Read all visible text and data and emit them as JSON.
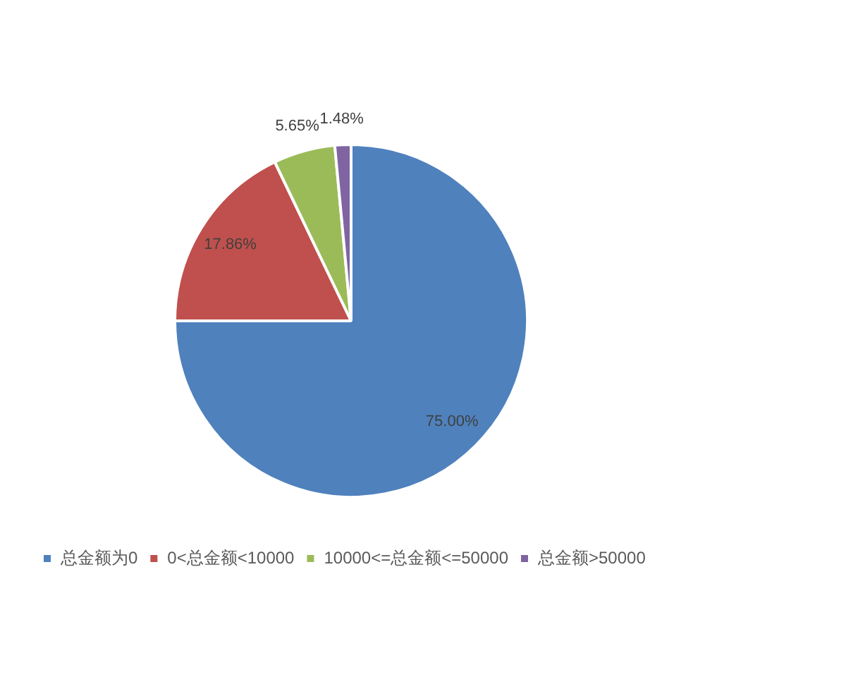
{
  "chart_data": {
    "type": "pie",
    "categories": [
      "总金额为0",
      "0<总金额<10000",
      "10000<=总金额<=50000",
      "总金额>50000"
    ],
    "values": [
      75.0,
      17.86,
      5.65,
      1.48
    ],
    "colors": [
      "#4f81bd",
      "#c0504d",
      "#9bbb59",
      "#8064a2"
    ],
    "value_labels": [
      "75.00%",
      "17.86%",
      "5.65%",
      "1.48%"
    ],
    "legend": "bottom left"
  }
}
